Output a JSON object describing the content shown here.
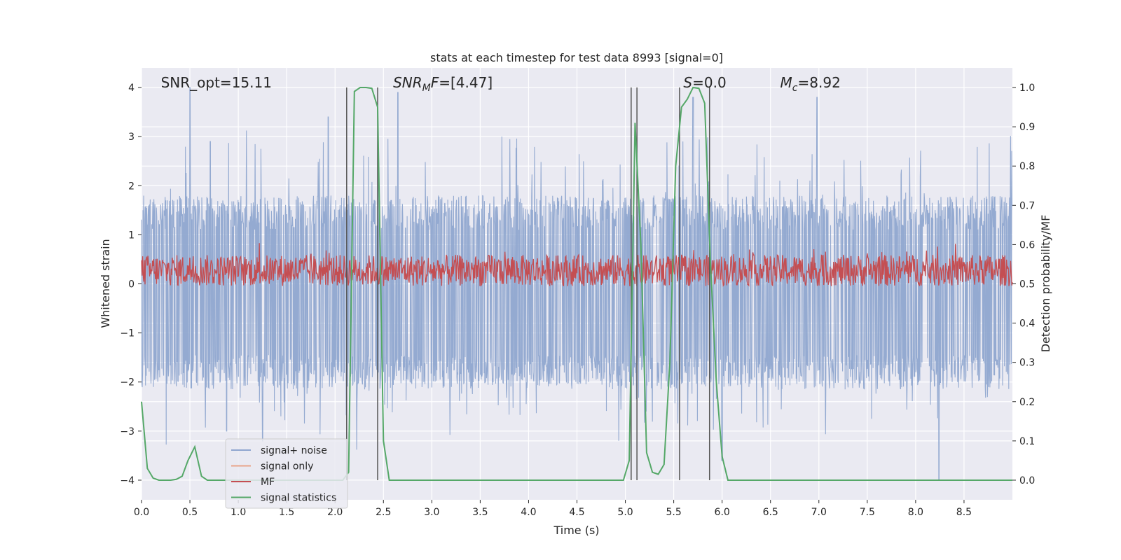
{
  "chart_data": {
    "type": "line",
    "title": "stats at each timestep for test data 8993 [signal=0]",
    "xlabel": "Time (s)",
    "ylabel": "Whitened strain",
    "y2label": "Detection probability/MF",
    "xlim": [
      0,
      9.0
    ],
    "ylim": [
      -4.4,
      4.4
    ],
    "y2lim": [
      -0.05,
      1.05
    ],
    "x_ticks": [
      0.0,
      0.5,
      1.0,
      1.5,
      2.0,
      2.5,
      3.0,
      3.5,
      4.0,
      4.5,
      5.0,
      5.5,
      6.0,
      6.5,
      7.0,
      7.5,
      8.0,
      8.5
    ],
    "x_tick_labels": [
      "0.0",
      "0.5",
      "1.0",
      "1.5",
      "2.0",
      "2.5",
      "3.0",
      "3.5",
      "4.0",
      "4.5",
      "5.0",
      "5.5",
      "6.0",
      "6.5",
      "7.0",
      "7.5",
      "8.0",
      "8.5"
    ],
    "y_ticks": [
      4,
      3,
      2,
      1,
      0,
      -1,
      -2,
      -3,
      -4
    ],
    "y_tick_labels": [
      "4",
      "3",
      "2",
      "1",
      "0",
      "−1",
      "−2",
      "−3",
      "−4"
    ],
    "y2_ticks": [
      1.0,
      0.9,
      0.8,
      0.7,
      0.6,
      0.5,
      0.4,
      0.3,
      0.2,
      0.1,
      0.0
    ],
    "y2_tick_labels": [
      "1.0",
      "0.9",
      "0.8",
      "0.7",
      "0.6",
      "0.5",
      "0.4",
      "0.3",
      "0.2",
      "0.1",
      "0.0"
    ],
    "annotations": [
      {
        "name": "snr-opt",
        "parts": [
          {
            "t": "SNR_opt=15.11",
            "i": false
          }
        ],
        "x": 0.2
      },
      {
        "name": "snr-mf",
        "parts": [
          {
            "t": "SNR",
            "i": true
          },
          {
            "t": "M",
            "i": true,
            "sub": true
          },
          {
            "t": "F",
            "i": true
          },
          {
            "t": "=[4.47]",
            "i": false
          }
        ],
        "x": 2.6
      },
      {
        "name": "s-value",
        "parts": [
          {
            "t": "S",
            "i": true
          },
          {
            "t": "=0.0",
            "i": false
          }
        ],
        "x": 5.6
      },
      {
        "name": "chirp-mass",
        "parts": [
          {
            "t": "M",
            "i": true
          },
          {
            "t": "c",
            "i": true,
            "sub": true
          },
          {
            "t": "=8.92",
            "i": false
          }
        ],
        "x": 6.6
      }
    ],
    "vertical_lines_x": [
      2.12,
      2.44,
      5.06,
      5.12,
      5.56,
      5.87
    ],
    "series": [
      {
        "name": "signal+ noise",
        "color": "#8fa6cf",
        "envelope_peaks": [
          {
            "x": 0.5,
            "y": 4.0
          },
          {
            "x": 0.71,
            "y": 2.9
          },
          {
            "x": 1.93,
            "y": 3.4
          },
          {
            "x": 2.65,
            "y": 3.9
          },
          {
            "x": 5.7,
            "y": 3.8
          },
          {
            "x": 6.98,
            "y": 3.8
          },
          {
            "x": 0.88,
            "y": -3.0
          },
          {
            "x": 1.25,
            "y": -3.2
          },
          {
            "x": 6.0,
            "y": -3.6
          },
          {
            "x": 8.24,
            "y": -4.0
          }
        ]
      },
      {
        "name": "signal only",
        "color": "#e8a48a",
        "values": []
      },
      {
        "name": "MF",
        "color": "#c44e52",
        "axis": "right",
        "baseline": 0.53,
        "spread": 0.05
      },
      {
        "name": "signal statistics",
        "color": "#55a868",
        "axis": "right",
        "x": [
          0.0,
          0.06,
          0.12,
          0.18,
          0.24,
          0.3,
          0.36,
          0.42,
          0.48,
          0.55,
          0.62,
          0.68,
          0.74,
          0.8,
          2.08,
          2.14,
          2.2,
          2.26,
          2.32,
          2.38,
          2.44,
          2.5,
          2.56,
          2.62,
          4.98,
          5.04,
          5.1,
          5.16,
          5.22,
          5.28,
          5.34,
          5.4,
          5.46,
          5.52,
          5.58,
          5.64,
          5.7,
          5.76,
          5.82,
          5.88,
          5.94,
          6.0,
          6.06,
          6.12,
          9.0
        ],
        "values": [
          0.2,
          0.03,
          0.005,
          0.0,
          0.0,
          0.0,
          0.002,
          0.01,
          0.05,
          0.085,
          0.01,
          0.0,
          0.0,
          0.0,
          0.0,
          0.02,
          0.99,
          1.0,
          1.0,
          0.998,
          0.95,
          0.1,
          0.0,
          0.0,
          0.0,
          0.05,
          0.91,
          0.6,
          0.07,
          0.02,
          0.015,
          0.04,
          0.3,
          0.8,
          0.95,
          0.97,
          1.0,
          0.998,
          0.96,
          0.55,
          0.25,
          0.06,
          0.0,
          0.0,
          0.0
        ]
      }
    ],
    "legend": {
      "position": "lower-left",
      "entries": [
        {
          "label": "signal+ noise",
          "color": "#8fa6cf"
        },
        {
          "label": "signal only",
          "color": "#e8a48a"
        },
        {
          "label": "MF",
          "color": "#c44e52"
        },
        {
          "label": "signal statistics",
          "color": "#55a868"
        }
      ]
    }
  }
}
